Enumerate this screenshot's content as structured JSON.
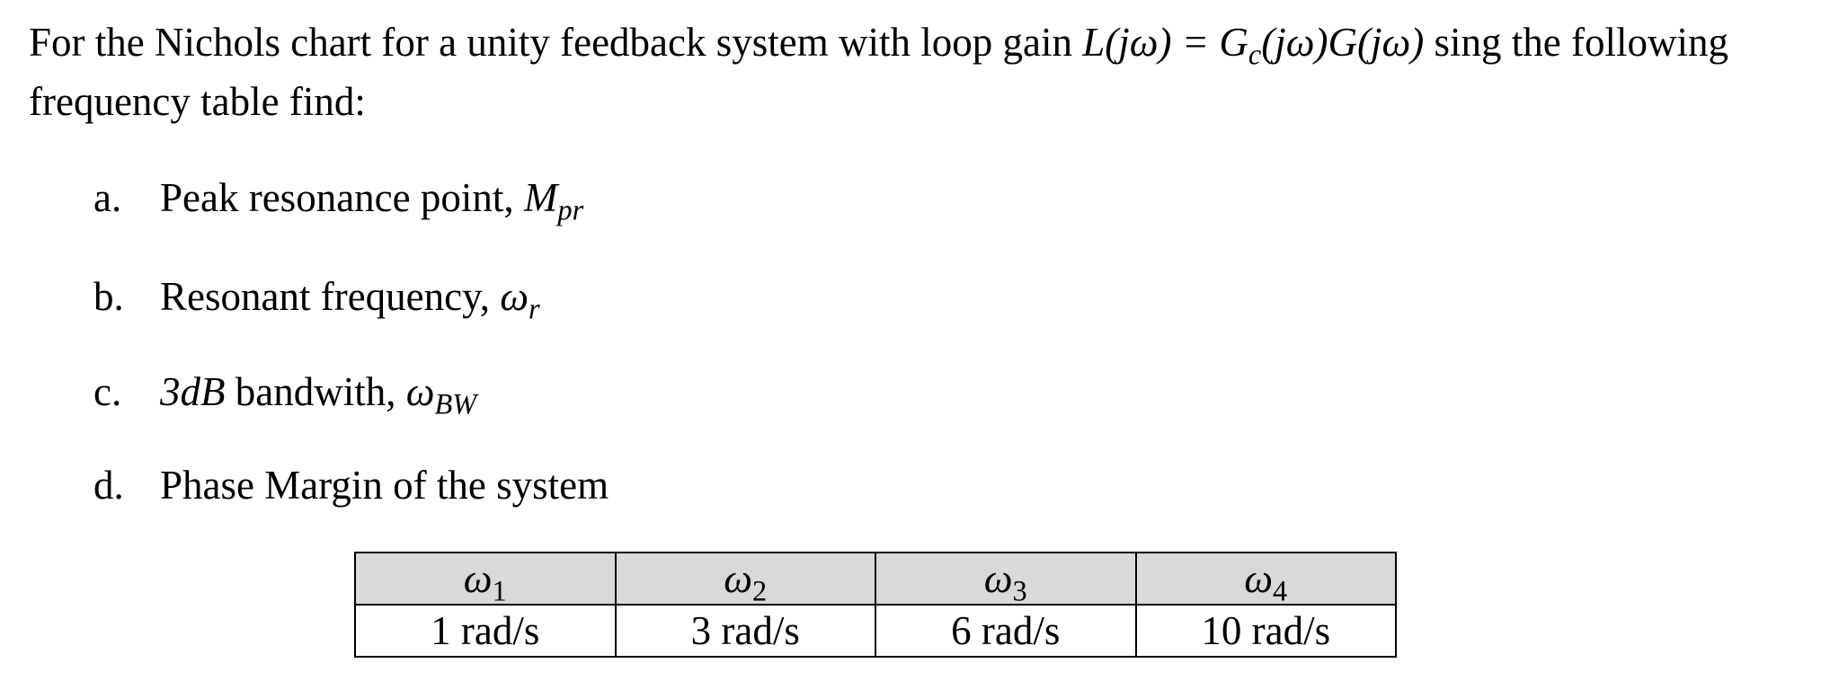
{
  "intro": {
    "text_before": "For the Nichols chart for a unity feedback system with loop gain ",
    "math": "L(jω) = G",
    "math_sub": "c",
    "math_rest": "(jω)G(jω)",
    "text_after": " sing the following frequency table find:"
  },
  "items": [
    {
      "letter": "a.",
      "text": "Peak resonance point, ",
      "symbol": "M",
      "symbol_sub": "pr"
    },
    {
      "letter": "b.",
      "text": "Resonant frequency, ",
      "symbol": "ω",
      "symbol_sub": "r"
    },
    {
      "letter": "c.",
      "prefix_math": "3dB",
      "text": " bandwith, ",
      "symbol": "ω",
      "symbol_sub": "BW"
    },
    {
      "letter": "d.",
      "text": "Phase Margin of the system"
    }
  ],
  "table": {
    "headers": [
      {
        "symbol": "ω",
        "sub": "1"
      },
      {
        "symbol": "ω",
        "sub": "2"
      },
      {
        "symbol": "ω",
        "sub": "3"
      },
      {
        "symbol": "ω",
        "sub": "4"
      }
    ],
    "values": [
      "1 rad/s",
      "3 rad/s",
      "6 rad/s",
      "10 rad/s"
    ],
    "header_bg": "#d9d9d9"
  }
}
